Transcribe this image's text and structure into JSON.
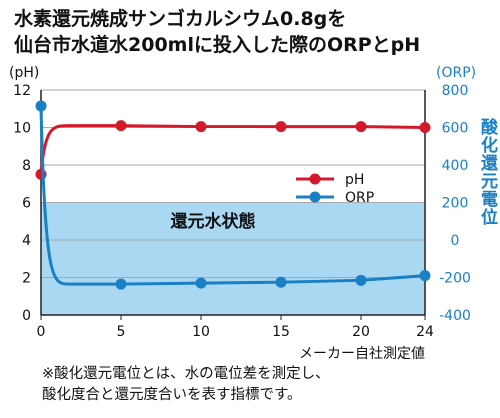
{
  "title_line1": "水素還元焼成サンゴカルシウム0.8gを",
  "title_line2": "仙台市水道水200mlに投入した際のORPとpH",
  "footnote_line1": "※酸化還元電位とは、水の電位差を測定し、",
  "footnote_line2": "酸化度合と還元度合いを表す指標です。",
  "colors": {
    "ph": "#d4192b",
    "orp": "#1a7fc4",
    "reduction_band": "#aad8f3",
    "right_axis_text": "#1a7fc4",
    "grid": "#a8a8a8"
  },
  "chart_data": {
    "type": "line",
    "title": "水素還元焼成サンゴカルシウム0.8gを仙台市水道水200mlに投入した際のORPとpH",
    "x": [
      0,
      5,
      10,
      15,
      20,
      24
    ],
    "xticks": [
      "0",
      "5",
      "10",
      "15",
      "20",
      "24"
    ],
    "xlabel": "メーカー自社測定値",
    "ylabel_left": "(pH)",
    "ylabel_left_unit": "(pH)",
    "ylim_left": [
      0,
      12
    ],
    "yticks_left": [
      "0",
      "2",
      "4",
      "6",
      "8",
      "10",
      "12"
    ],
    "ylabel_right_unit": "(ORP)",
    "ylabel_right": "酸化還元電位",
    "ylim_right": [
      -400,
      800
    ],
    "yticks_right": [
      "-400",
      "-200",
      "0",
      "200",
      "400",
      "600",
      "800"
    ],
    "band": {
      "label": "還元水状態",
      "from": 0,
      "to": 6
    },
    "series": [
      {
        "name": "pH",
        "axis": "left",
        "x": [
          0,
          5,
          10,
          15,
          20,
          24
        ],
        "values": [
          7.5,
          10.1,
          10.05,
          10.05,
          10.05,
          10.0
        ]
      },
      {
        "name": "ORP",
        "axis": "right",
        "x": [
          0,
          5,
          10,
          15,
          20,
          24
        ],
        "values": [
          715,
          -235,
          -230,
          -225,
          -215,
          -190
        ]
      }
    ],
    "legend": "right",
    "grid": true
  }
}
